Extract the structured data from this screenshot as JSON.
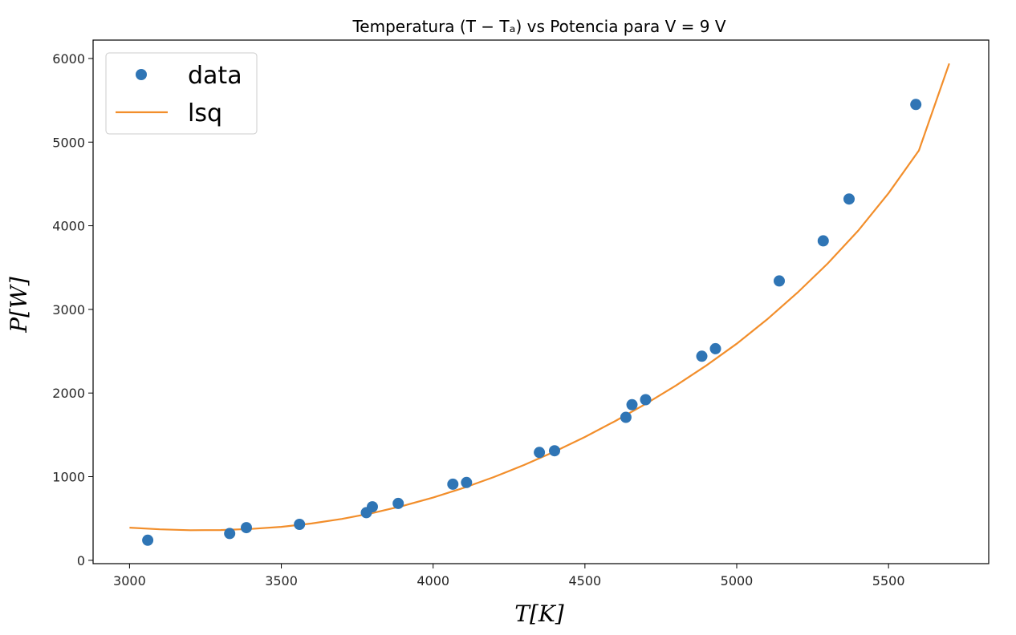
{
  "chart_data": {
    "type": "scatter",
    "title": "Temperatura (T − Tₐ) vs Potencia para V = 9 V",
    "xlabel": "T[K]",
    "ylabel": "P[W]",
    "xlim": [
      2880,
      5830
    ],
    "ylim": [
      -40,
      6220
    ],
    "x_ticks": [
      3000,
      3500,
      4000,
      4500,
      5000,
      5500
    ],
    "y_ticks": [
      0,
      1000,
      2000,
      3000,
      4000,
      5000,
      6000
    ],
    "x_tick_labels": [
      "3000",
      "3500",
      "4000",
      "4500",
      "5000",
      "5500"
    ],
    "y_tick_labels": [
      "0",
      "1000",
      "2000",
      "3000",
      "4000",
      "5000",
      "6000"
    ],
    "grid": false,
    "legend_placement": "top-left",
    "legend": [
      {
        "label": "data",
        "marker": "circle",
        "color": "#2f75b5"
      },
      {
        "label": "lsq",
        "marker": "line",
        "color": "#f28e2b"
      }
    ],
    "series": [
      {
        "name": "data",
        "kind": "scatter",
        "color": "#2f75b5",
        "points": [
          [
            3060,
            240
          ],
          [
            3330,
            320
          ],
          [
            3385,
            390
          ],
          [
            3560,
            430
          ],
          [
            3780,
            570
          ],
          [
            3800,
            640
          ],
          [
            3885,
            680
          ],
          [
            4065,
            910
          ],
          [
            4110,
            930
          ],
          [
            4350,
            1290
          ],
          [
            4400,
            1310
          ],
          [
            4635,
            1710
          ],
          [
            4655,
            1860
          ],
          [
            4700,
            1920
          ],
          [
            4885,
            2440
          ],
          [
            4930,
            2530
          ],
          [
            5140,
            3340
          ],
          [
            5285,
            3820
          ],
          [
            5370,
            4320
          ],
          [
            5590,
            5450
          ]
        ]
      },
      {
        "name": "lsq",
        "kind": "line",
        "color": "#f28e2b",
        "x": [
          3000,
          3100,
          3200,
          3300,
          3400,
          3500,
          3600,
          3700,
          3800,
          3900,
          4000,
          4100,
          4200,
          4300,
          4400,
          4500,
          4600,
          4700,
          4800,
          4900,
          5000,
          5100,
          5200,
          5300,
          5400,
          5500,
          5600,
          5700
        ],
        "y": [
          390,
          370,
          360,
          362,
          375,
          400,
          440,
          495,
          565,
          650,
          750,
          865,
          995,
          1140,
          1300,
          1475,
          1665,
          1870,
          2090,
          2330,
          2590,
          2880,
          3200,
          3550,
          3940,
          4390,
          4900,
          5940
        ]
      }
    ]
  }
}
